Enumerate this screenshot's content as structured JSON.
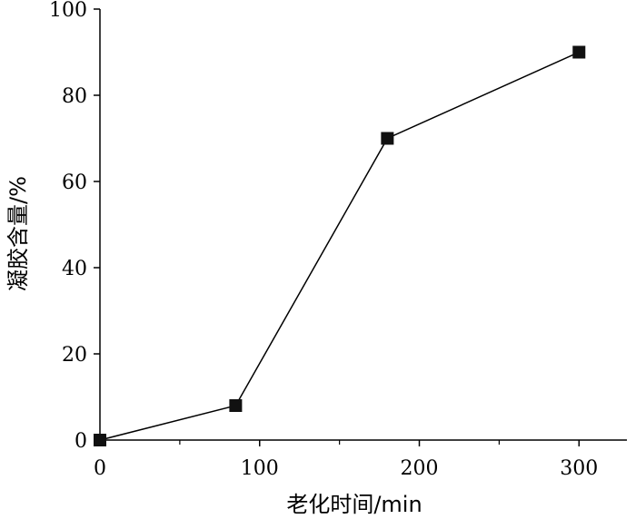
{
  "chart_data": {
    "type": "line",
    "title": "",
    "xlabel": "老化时间/min",
    "ylabel": "凝胶含量/%",
    "xlim": [
      0,
      330
    ],
    "ylim": [
      0,
      100
    ],
    "x_ticks": [
      0,
      100,
      200,
      300
    ],
    "x_minor_ticks": [
      50,
      150,
      250
    ],
    "y_ticks": [
      0,
      20,
      40,
      60,
      80,
      100
    ],
    "grid": false,
    "legend": "none",
    "marker": "square",
    "colors": {
      "line": "#000000",
      "marker": "#111111",
      "axis": "#000000"
    },
    "series": [
      {
        "x": [
          0,
          85,
          180,
          300
        ],
        "y": [
          0,
          8,
          70,
          90
        ]
      }
    ]
  }
}
